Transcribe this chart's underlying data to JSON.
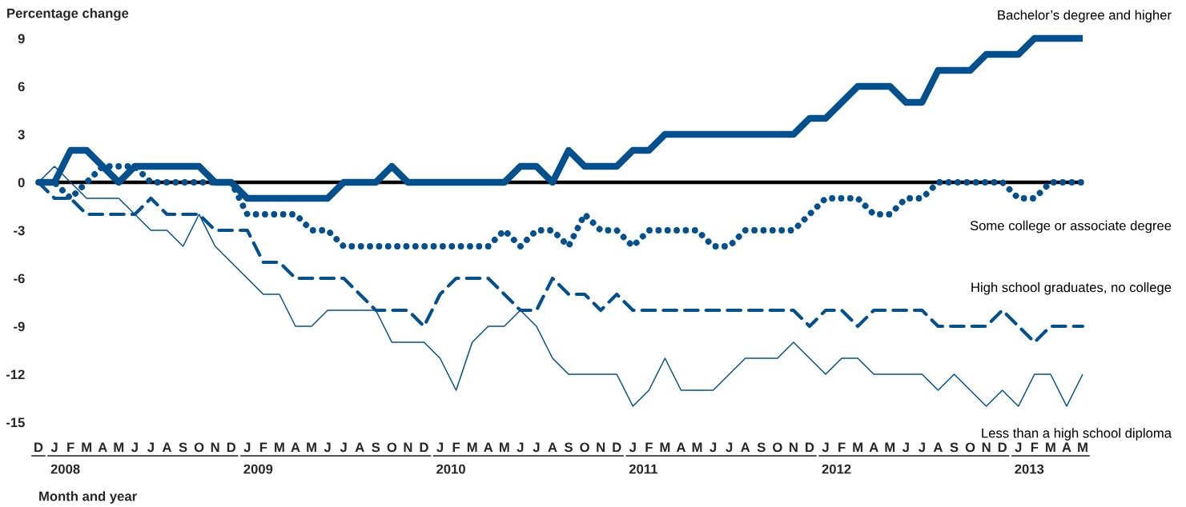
{
  "chart_data": {
    "type": "line",
    "ylabel": "Percentage change",
    "xlabel": "Month and year",
    "categories": [
      "D",
      "J",
      "F",
      "M",
      "A",
      "M",
      "J",
      "J",
      "A",
      "S",
      "O",
      "N",
      "D",
      "J",
      "F",
      "M",
      "A",
      "M",
      "J",
      "J",
      "A",
      "S",
      "O",
      "N",
      "D",
      "J",
      "F",
      "M",
      "A",
      "M",
      "J",
      "J",
      "A",
      "S",
      "O",
      "N",
      "D",
      "J",
      "F",
      "M",
      "A",
      "M",
      "J",
      "J",
      "A",
      "S",
      "O",
      "N",
      "D",
      "J",
      "F",
      "M",
      "A",
      "M",
      "J",
      "J",
      "A",
      "S",
      "O",
      "N",
      "D",
      "J",
      "F",
      "M",
      "A",
      "M"
    ],
    "series": [
      {
        "name": "Bachelor’s degree and higher",
        "color": "#03508f",
        "line_style": "solid",
        "values": [
          0,
          0,
          2,
          2,
          1,
          0,
          1,
          1,
          1,
          1,
          1,
          0,
          0,
          -1,
          -1,
          -1,
          -1,
          -1,
          -1,
          0,
          0,
          0,
          1,
          0,
          0,
          0,
          0,
          0,
          0,
          0,
          1,
          1,
          0,
          2,
          1,
          1,
          1,
          2,
          2,
          3,
          3,
          3,
          3,
          3,
          3,
          3,
          3,
          3,
          4,
          4,
          5,
          6,
          6,
          6,
          5,
          5,
          7,
          7,
          7,
          8,
          8,
          8,
          9,
          9,
          9,
          9
        ]
      },
      {
        "name": "Some college or associate degree",
        "color": "#03508f",
        "line_style": "dotted",
        "values": [
          0,
          0,
          -1,
          0,
          1,
          1,
          1,
          0,
          0,
          0,
          0,
          0,
          0,
          -2,
          -2,
          -2,
          -2,
          -3,
          -3,
          -4,
          -4,
          -4,
          -4,
          -4,
          -4,
          -4,
          -4,
          -4,
          -4,
          -3,
          -4,
          -3,
          -3,
          -4,
          -2,
          -3,
          -3,
          -4,
          -3,
          -3,
          -3,
          -3,
          -4,
          -4,
          -3,
          -3,
          -3,
          -3,
          -2,
          -1,
          -1,
          -1,
          -2,
          -2,
          -1,
          -1,
          0,
          0,
          0,
          0,
          0,
          -1,
          -1,
          0,
          0,
          0
        ]
      },
      {
        "name": "High school graduates, no college",
        "color": "#03508f",
        "line_style": "dashed",
        "values": [
          0,
          -1,
          -1,
          -2,
          -2,
          -2,
          -2,
          -1,
          -2,
          -2,
          -2,
          -3,
          -3,
          -3,
          -5,
          -5,
          -6,
          -6,
          -6,
          -6,
          -7,
          -8,
          -8,
          -8,
          -9,
          -7,
          -6,
          -6,
          -6,
          -7,
          -8,
          -8,
          -6,
          -7,
          -7,
          -8,
          -7,
          -8,
          -8,
          -8,
          -8,
          -8,
          -8,
          -8,
          -8,
          -8,
          -8,
          -8,
          -9,
          -8,
          -8,
          -9,
          -8,
          -8,
          -8,
          -8,
          -9,
          -9,
          -9,
          -9,
          -8,
          -9,
          -10,
          -9,
          -9,
          -9
        ]
      },
      {
        "name": "Less than a high school diploma",
        "color": "#03508f",
        "line_style": "solid",
        "values": [
          0,
          1,
          0,
          -1,
          -1,
          -1,
          -2,
          -3,
          -3,
          -4,
          -2,
          -4,
          -5,
          -6,
          -7,
          -7,
          -9,
          -9,
          -8,
          -8,
          -8,
          -8,
          -10,
          -10,
          -10,
          -11,
          -13,
          -10,
          -9,
          -9,
          -8,
          -9,
          -11,
          -12,
          -12,
          -12,
          -12,
          -14,
          -13,
          -11,
          -13,
          -13,
          -13,
          -12,
          -11,
          -11,
          -11,
          -10,
          -11,
          -12,
          -11,
          -11,
          -12,
          -12,
          -12,
          -12,
          -13,
          -12,
          -13,
          -14,
          -13,
          -14,
          -12,
          -12,
          -14,
          -12
        ]
      }
    ],
    "ylim": [
      -15,
      9
    ],
    "yticks": [
      -15,
      -12,
      -9,
      -6,
      -3,
      0,
      3,
      6,
      9
    ],
    "ref_lines": [
      {
        "axis": "y",
        "value": 0,
        "color": "#000000"
      }
    ],
    "annotations": [
      "2008",
      "2009",
      "2010",
      "2011",
      "2012",
      "2013"
    ]
  }
}
